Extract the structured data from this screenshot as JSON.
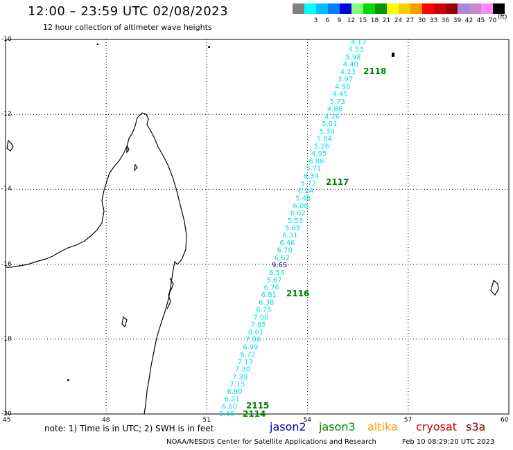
{
  "header": {
    "title": "12:00 – 23:59 UTC 02/08/2023",
    "subtitle": "12 hour collection of altimeter wave heights"
  },
  "scale": {
    "swatches": [
      {
        "color": "#808080",
        "label": ""
      },
      {
        "color": "#00ffff",
        "label": "3"
      },
      {
        "color": "#00bfff",
        "label": "6"
      },
      {
        "color": "#0080ff",
        "label": "9"
      },
      {
        "color": "#0000e0",
        "label": "12"
      },
      {
        "color": "#80ff80",
        "label": "15"
      },
      {
        "color": "#00dd00",
        "label": "18"
      },
      {
        "color": "#009900",
        "label": "21"
      },
      {
        "color": "#ffff00",
        "label": "24"
      },
      {
        "color": "#ffcc00",
        "label": "27"
      },
      {
        "color": "#ff9900",
        "label": "30"
      },
      {
        "color": "#ff0000",
        "label": "33"
      },
      {
        "color": "#cc0000",
        "label": "36"
      },
      {
        "color": "#990000",
        "label": "39"
      },
      {
        "color": "#aa88dd",
        "label": "42"
      },
      {
        "color": "#cc88cc",
        "label": "45"
      },
      {
        "color": "#ff88ff",
        "label": "70"
      },
      {
        "color": "#000000",
        "label": ""
      }
    ],
    "units": "(ft)"
  },
  "axes": {
    "lat_labels": [
      "-10",
      "-12",
      "-14",
      "-16",
      "-18",
      "-20"
    ],
    "lon_labels": [
      "45",
      "48",
      "51",
      "54",
      "57",
      "60"
    ]
  },
  "track": {
    "color": "#00e0e0",
    "highlight_color": "#000080",
    "highlight_index": 30,
    "values": [
      "4.13",
      "4.53",
      "5.98",
      "4.40",
      "4.23",
      "3.97",
      "4.58",
      "4.45",
      "5.73",
      "4.86",
      "4.26",
      "5.01",
      "5.39",
      "5.84",
      "5.26",
      "4.95",
      "6.88",
      "5.71",
      "6.34",
      "5.72",
      "6.24",
      "5.48",
      "6.08",
      "6.62",
      "5.53",
      "5.65",
      "6.31",
      "6.46",
      "6.70",
      "6.62",
      "9.65",
      "6.54",
      "5.67",
      "6.76",
      "6.81",
      "6.38",
      "6.75",
      "7.00",
      "7.65",
      "8.61",
      "7.06",
      "6.99",
      "6.72",
      "7.13",
      "7.30",
      "7.39",
      "7.15",
      "6.90",
      "6.21",
      "6.60",
      "6.48"
    ],
    "passes": [
      "2118",
      "2117",
      "2116",
      "2115",
      "2114"
    ]
  },
  "note": "note: 1) Time is in UTC; 2) SWH is in feet",
  "satellites": [
    {
      "name": "jason2",
      "color": "#0000cc"
    },
    {
      "name": "jason3",
      "color": "#008800"
    },
    {
      "name": "altika",
      "color": "#ff9900"
    },
    {
      "name": "cryosat",
      "color": "#cc0000"
    },
    {
      "name": "s3a",
      "color": "#880000"
    }
  ],
  "footer": {
    "credit": "NOAA/NESDIS Center for Satellite Applications and Research",
    "timestamp": "Feb 10 08:29:20 UTC 2023"
  }
}
